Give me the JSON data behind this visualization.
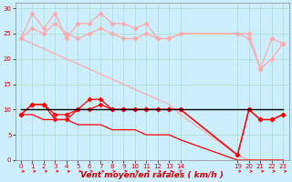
{
  "bg_color": "#cceeff",
  "grid_color": "#aaddcc",
  "xlabel": "Vent moyen/en rafales ( km/h )",
  "xlim": [
    -0.5,
    23.5
  ],
  "ylim": [
    0,
    31
  ],
  "yticks": [
    0,
    5,
    10,
    15,
    20,
    25,
    30
  ],
  "xtick_vals": [
    0,
    1,
    2,
    3,
    4,
    5,
    6,
    7,
    8,
    9,
    10,
    11,
    12,
    13,
    14,
    19,
    20,
    21,
    22,
    23
  ],
  "x_positions": [
    0,
    1,
    2,
    3,
    4,
    5,
    6,
    7,
    8,
    9,
    10,
    11,
    12,
    13,
    14,
    19,
    20,
    21,
    22,
    23
  ],
  "color_light_pink": "#ffaaaa",
  "color_red": "#ff0000",
  "color_dark_red": "#cc0000",
  "color_black": "#000000",
  "series_rafales1": [
    24,
    29,
    26,
    29,
    24,
    27,
    27,
    29,
    27,
    27,
    26,
    27,
    24,
    24,
    25,
    25,
    24,
    18,
    24,
    23
  ],
  "series_rafales2": [
    24,
    26,
    25,
    27,
    25,
    24,
    25,
    26,
    25,
    24,
    24,
    25,
    24,
    24,
    25,
    25,
    25,
    18,
    20,
    23
  ],
  "series_diag_high": [
    24,
    23,
    22,
    21,
    20,
    19,
    18,
    17,
    16,
    15,
    14,
    13,
    12,
    11,
    9,
    1,
    0,
    0,
    0,
    0
  ],
  "series_vent1": [
    9,
    11,
    11,
    8,
    8,
    10,
    12,
    12,
    10,
    10,
    10,
    10,
    10,
    10,
    10,
    1,
    10,
    8,
    8,
    9
  ],
  "series_vent2": [
    9,
    11,
    11,
    9,
    9,
    10,
    10,
    11,
    10,
    10,
    10,
    10,
    10,
    10,
    10,
    1,
    10,
    8,
    8,
    9
  ],
  "series_diag_low": [
    9,
    9,
    8,
    8,
    8,
    7,
    7,
    7,
    6,
    6,
    6,
    5,
    5,
    5,
    4,
    0,
    0,
    0,
    0,
    0
  ],
  "series_black": [
    10,
    10,
    10,
    10,
    10,
    10,
    10,
    10,
    10,
    10,
    10,
    10,
    10,
    10,
    10,
    10,
    10,
    10,
    10,
    10
  ],
  "arrow_down_indices": [
    14
  ]
}
